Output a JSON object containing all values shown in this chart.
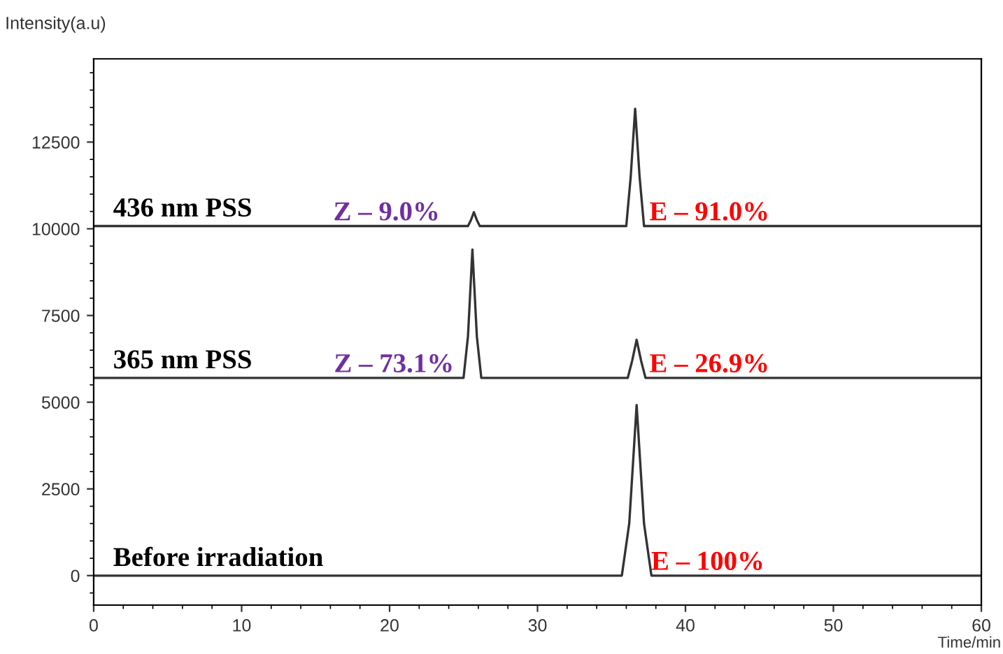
{
  "chart_data": {
    "type": "line",
    "ylabel": "Intensity(a.u)",
    "xlabel": "Time/min",
    "xlim": [
      0,
      60
    ],
    "xticks": [
      0,
      10,
      20,
      30,
      40,
      50,
      60
    ],
    "ylim": [
      -850,
      14900
    ],
    "yticks": [
      0,
      2500,
      5000,
      7500,
      10000,
      12500
    ],
    "grid": false,
    "legend": false,
    "series": [
      {
        "name": "436 nm PSS",
        "color": "#333333",
        "x": [
          0,
          25.3,
          25.5,
          25.7,
          25.9,
          26.1,
          36.0,
          36.3,
          36.6,
          36.9,
          37.2,
          60
        ],
        "values": [
          10080,
          10080,
          10250,
          10480,
          10250,
          10080,
          10080,
          11500,
          13460,
          11500,
          10080,
          10080
        ]
      },
      {
        "name": "365 nm PSS",
        "color": "#333333",
        "x": [
          0,
          25.0,
          25.3,
          25.6,
          25.9,
          26.2,
          36.1,
          36.4,
          36.7,
          37.0,
          37.3,
          60
        ],
        "values": [
          5700,
          5700,
          6900,
          9400,
          6900,
          5700,
          5700,
          6200,
          6800,
          6200,
          5700,
          5700
        ]
      },
      {
        "name": "Before irradiation",
        "color": "#333333",
        "x": [
          0,
          35.7,
          36.2,
          36.7,
          37.2,
          37.7,
          60
        ],
        "values": [
          0,
          0,
          1500,
          4920,
          1500,
          0,
          0
        ]
      }
    ],
    "annotations": [
      "Z – 9.0%",
      "E – 91.0%",
      "Z – 73.1%",
      "E – 26.9%",
      "E – 100%"
    ]
  }
}
